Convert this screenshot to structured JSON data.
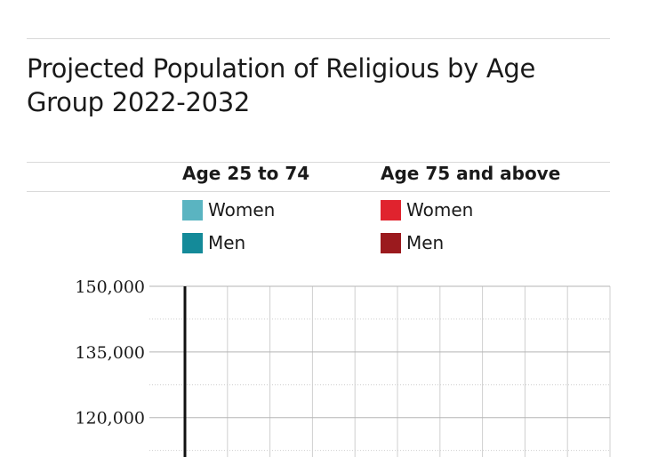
{
  "title": "Projected Population of Religious by Age Group 2022-2032",
  "legend": {
    "groups": [
      {
        "heading": "Age 25 to 74",
        "items": [
          {
            "label": "Women",
            "color": "#5ab4c1"
          },
          {
            "label": "Men",
            "color": "#148a99"
          }
        ]
      },
      {
        "heading": "Age 75 and above",
        "items": [
          {
            "label": "Women",
            "color": "#e0232e"
          },
          {
            "label": "Men",
            "color": "#9b1a1e"
          }
        ]
      }
    ]
  },
  "chart_data": {
    "type": "bar",
    "title": "Projected Population of Religious by Age Group 2022-2032",
    "xlabel": "",
    "ylabel": "",
    "ylim": [
      111000,
      150000
    ],
    "y_ticks": [
      {
        "value": 150000,
        "label": "150,000"
      },
      {
        "value": 135000,
        "label": "135,000"
      },
      {
        "value": 120000,
        "label": "120,000"
      }
    ],
    "grid": true,
    "series": []
  }
}
